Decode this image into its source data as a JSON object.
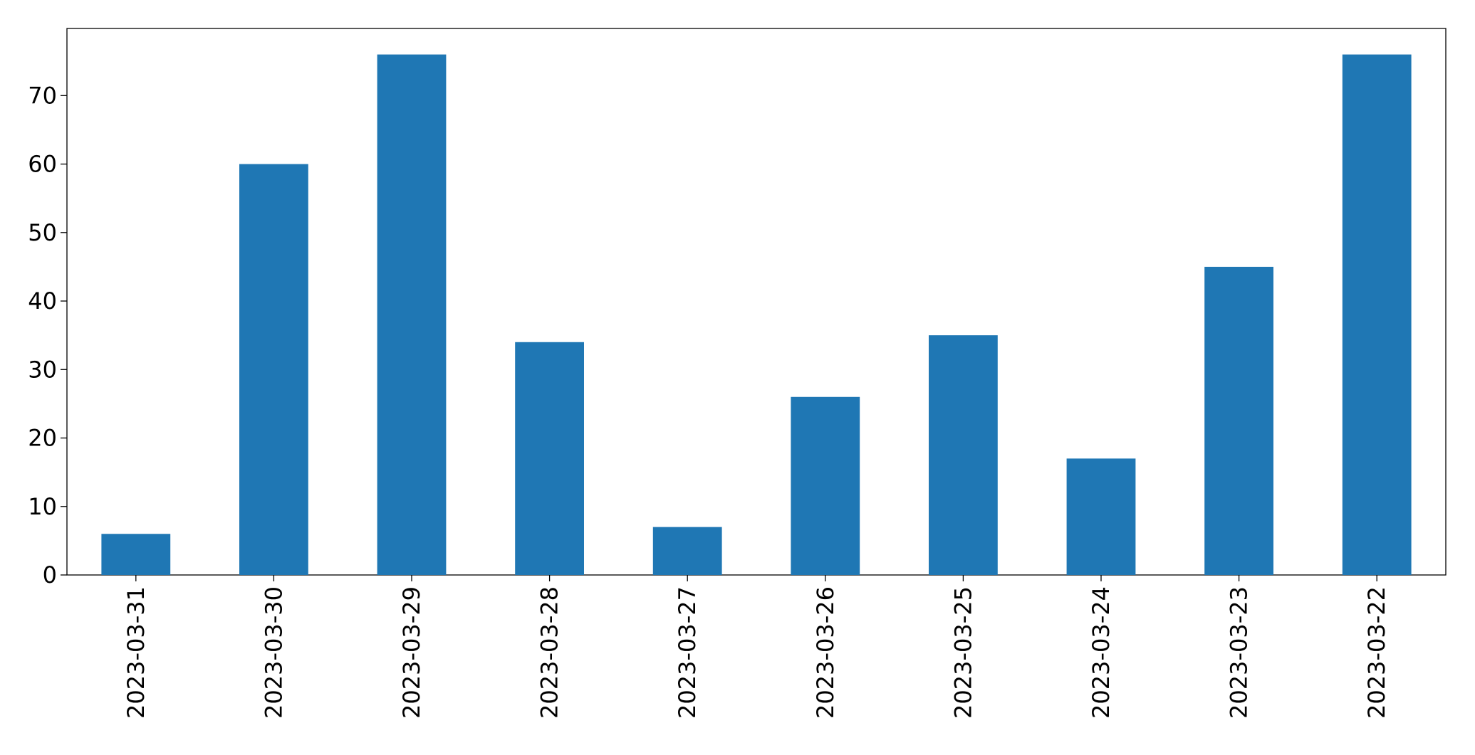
{
  "chart_data": {
    "type": "bar",
    "categories": [
      "2023-03-31",
      "2023-03-30",
      "2023-03-29",
      "2023-03-28",
      "2023-03-27",
      "2023-03-26",
      "2023-03-25",
      "2023-03-24",
      "2023-03-23",
      "2023-03-22"
    ],
    "values": [
      6,
      60,
      76,
      34,
      7,
      26,
      35,
      17,
      45,
      76
    ],
    "color": "#1f77b4",
    "ylim": [
      0,
      79.8
    ],
    "yticks": [
      0,
      10,
      20,
      30,
      40,
      50,
      60,
      70
    ],
    "grid": false
  }
}
